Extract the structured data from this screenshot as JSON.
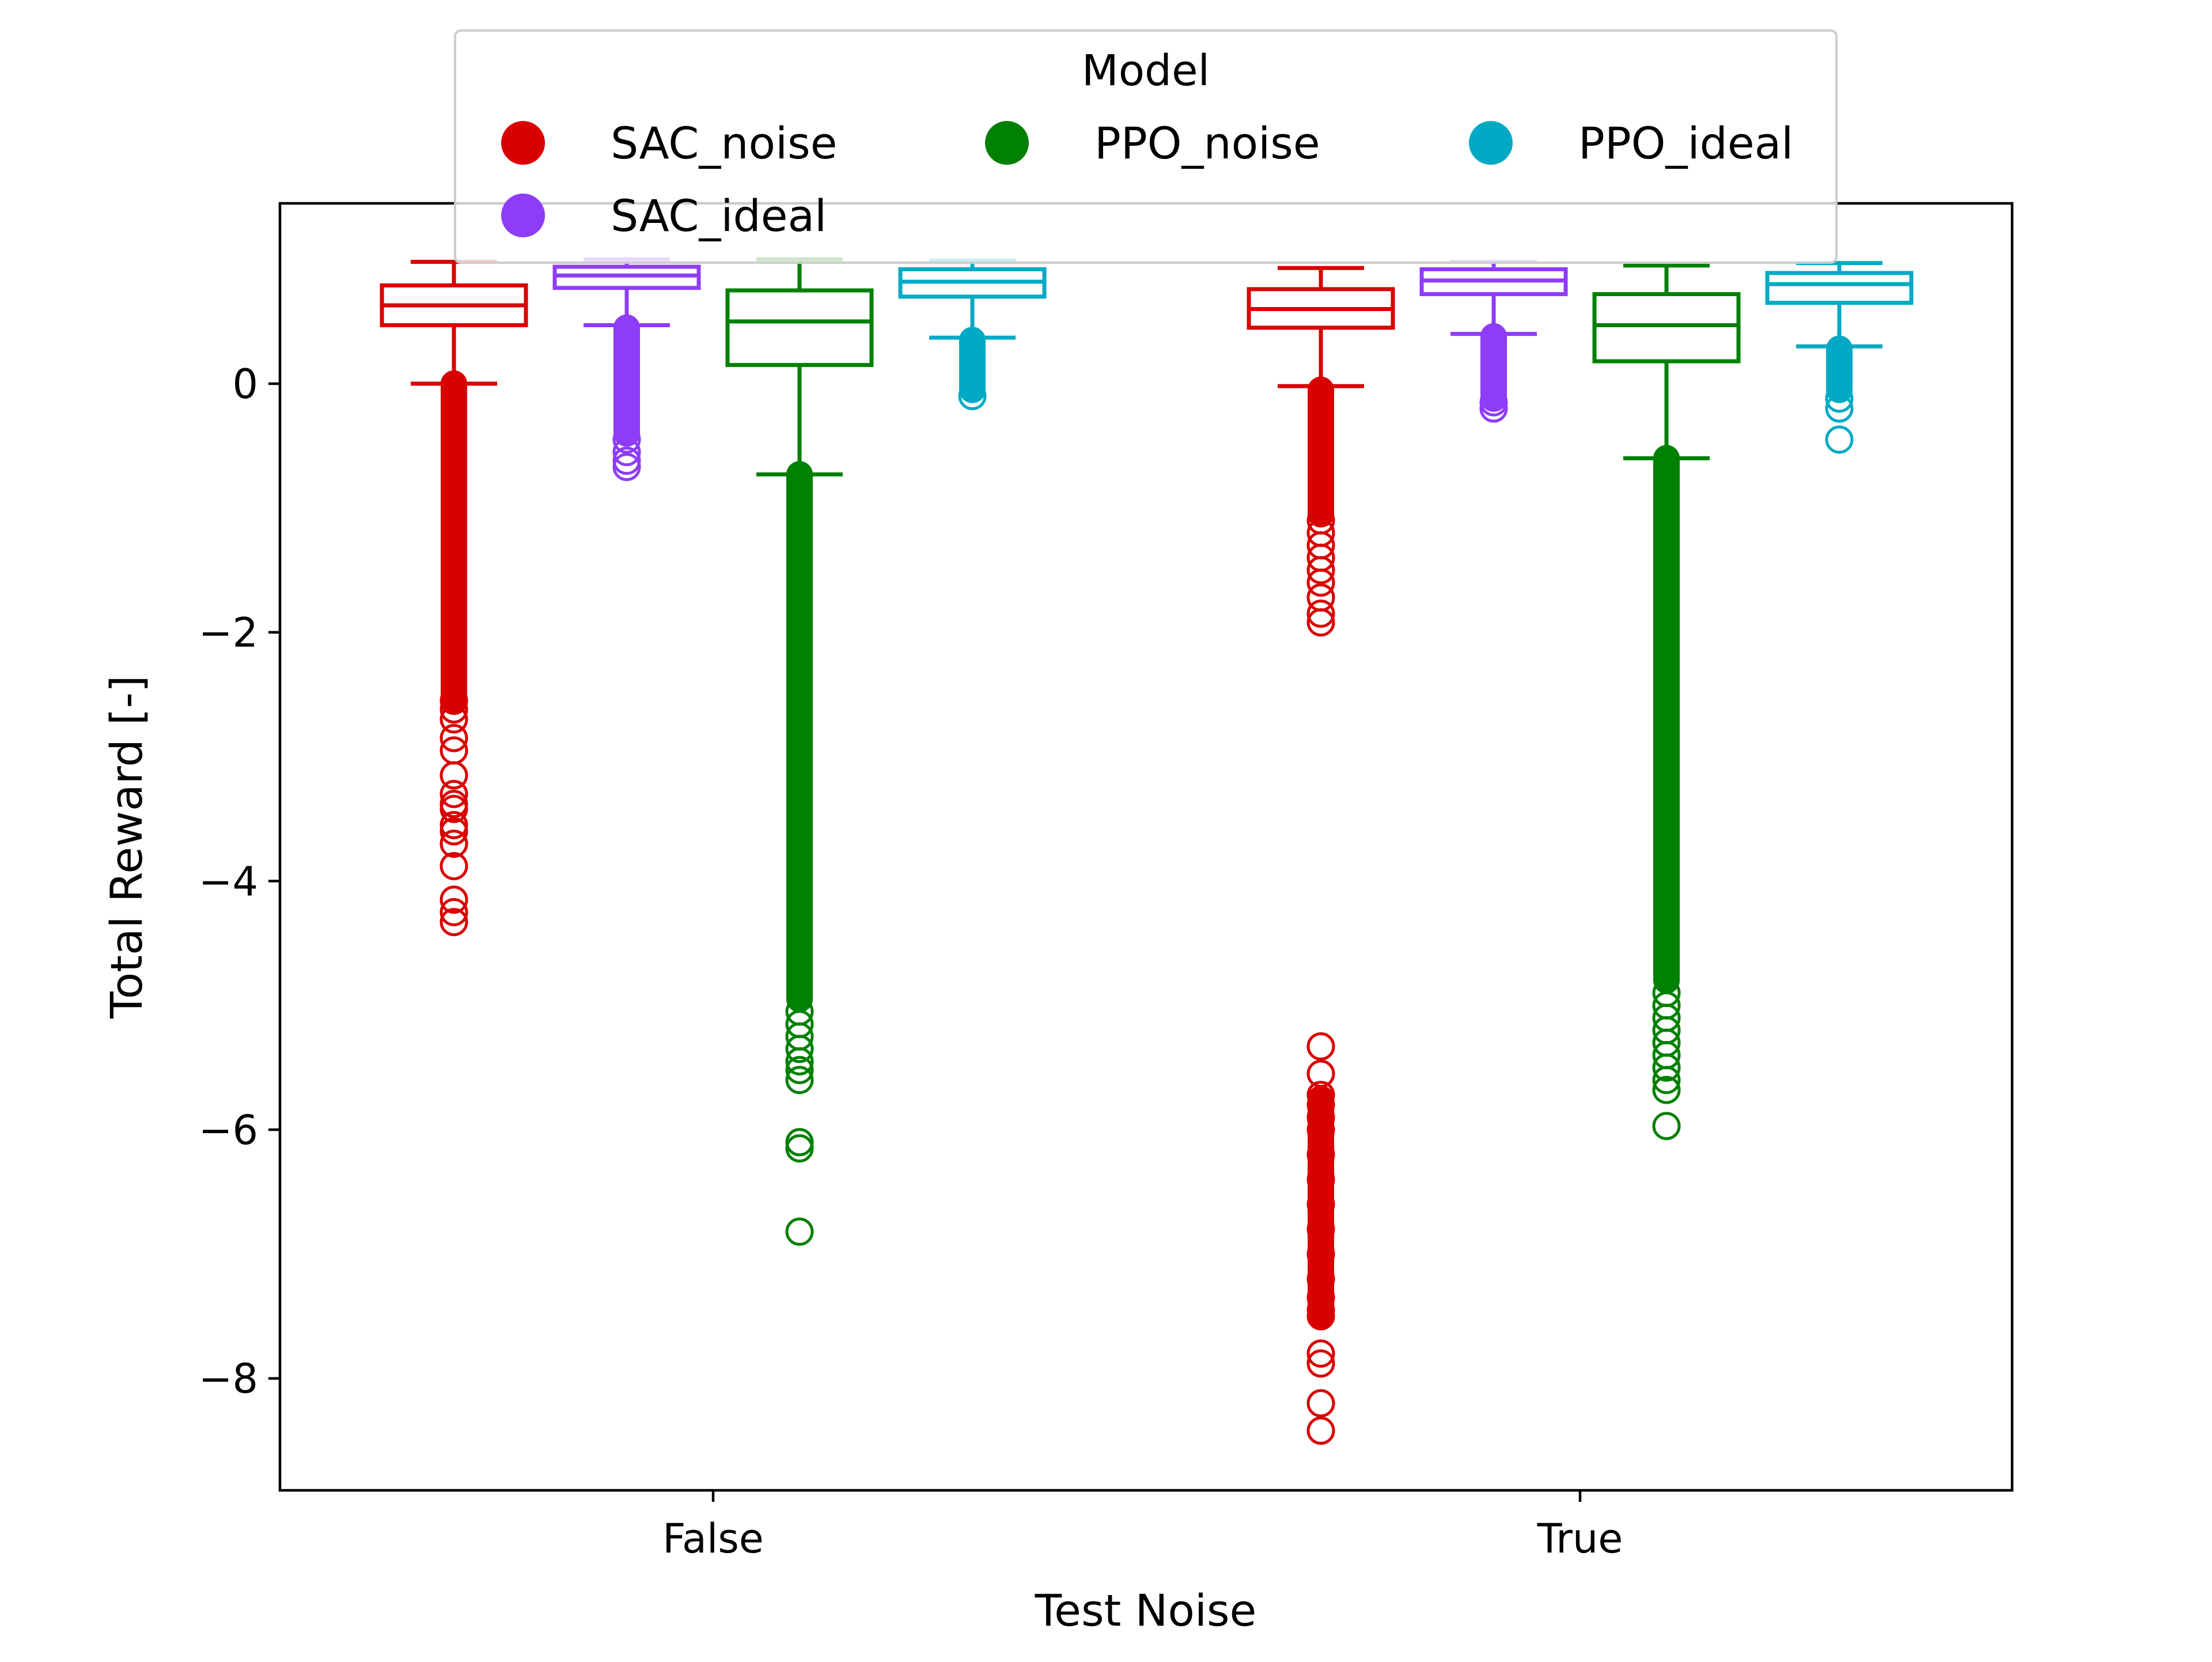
{
  "chart_data": {
    "type": "box",
    "xlabel": "Test Noise",
    "ylabel": "Total Reward [-]",
    "ylim": [
      -8.9,
      1.45
    ],
    "yticks": [
      0,
      -2,
      -4,
      -6,
      -8
    ],
    "ytick_labels": [
      "0",
      "−2",
      "−4",
      "−6",
      "−8"
    ],
    "categories": [
      "False",
      "True"
    ],
    "grid": false,
    "legend": {
      "title": "Model",
      "placement": "top-center",
      "entries": [
        "SAC_noise",
        "PPO_noise",
        "PPO_ideal",
        "SAC_ideal"
      ]
    },
    "series": [
      {
        "name": "SAC_noise",
        "color": "#d90000",
        "boxes": [
          {
            "category": "False",
            "whislo": 0.0,
            "q1": 0.47,
            "med": 0.63,
            "q3": 0.79,
            "whishi": 0.98,
            "fliers_dense": [
              -2.55,
              0.0
            ],
            "fliers": [
              -2.55,
              -2.62,
              -2.7,
              -2.85,
              -2.95,
              -3.15,
              -3.3,
              -3.38,
              -3.42,
              -3.55,
              -3.6,
              -3.7,
              -3.88,
              -4.15,
              -4.25,
              -4.33
            ]
          },
          {
            "category": "True",
            "whislo": -0.02,
            "q1": 0.45,
            "med": 0.6,
            "q3": 0.76,
            "whishi": 0.93,
            "fliers_dense": [
              -1.05,
              -0.05
            ],
            "fliers": [
              -1.1,
              -1.2,
              -1.3,
              -1.4,
              -1.5,
              -1.6,
              -1.72,
              -1.85,
              -1.92,
              -5.33,
              -5.55,
              -5.72,
              -5.8,
              -5.9,
              -6.0,
              -6.2,
              -6.4,
              -6.6,
              -6.8,
              -7.0,
              -7.2,
              -7.35,
              -7.45,
              -7.5,
              -7.8,
              -7.88,
              -8.2,
              -8.42
            ],
            "fliers_dense_2": [
              -7.5,
              -5.75
            ]
          }
        ]
      },
      {
        "name": "SAC_ideal",
        "color": "#8e3cf7",
        "boxes": [
          {
            "category": "False",
            "whislo": 0.47,
            "q1": 0.77,
            "med": 0.87,
            "q3": 0.94,
            "whishi": 1.0,
            "fliers_dense": [
              -0.4,
              0.45
            ],
            "fliers": [
              -0.45,
              -0.55,
              -0.62,
              -0.67
            ]
          },
          {
            "category": "True",
            "whislo": 0.4,
            "q1": 0.72,
            "med": 0.83,
            "q3": 0.92,
            "whishi": 0.98,
            "fliers_dense": [
              -0.12,
              0.38
            ],
            "fliers": [
              -0.15,
              -0.2
            ]
          }
        ]
      },
      {
        "name": "PPO_noise",
        "color": "#008000",
        "boxes": [
          {
            "category": "False",
            "whislo": -0.73,
            "q1": 0.15,
            "med": 0.5,
            "q3": 0.75,
            "whishi": 1.0,
            "fliers_dense": [
              -4.95,
              -0.73
            ],
            "fliers": [
              -5.05,
              -5.15,
              -5.25,
              -5.35,
              -5.45,
              -5.52,
              -5.6,
              -6.1,
              -6.15,
              -6.82
            ]
          },
          {
            "category": "True",
            "whislo": -0.6,
            "q1": 0.18,
            "med": 0.47,
            "q3": 0.72,
            "whishi": 0.95,
            "fliers_dense": [
              -4.8,
              -0.6
            ],
            "fliers": [
              -4.9,
              -5.0,
              -5.1,
              -5.2,
              -5.3,
              -5.4,
              -5.5,
              -5.6,
              -5.68,
              -5.97
            ]
          }
        ]
      },
      {
        "name": "PPO_ideal",
        "color": "#00aac4",
        "boxes": [
          {
            "category": "False",
            "whislo": 0.37,
            "q1": 0.7,
            "med": 0.82,
            "q3": 0.92,
            "whishi": 0.99,
            "fliers_dense": [
              -0.05,
              0.35
            ],
            "fliers": [
              -0.1
            ]
          },
          {
            "category": "True",
            "whislo": 0.3,
            "q1": 0.65,
            "med": 0.8,
            "q3": 0.89,
            "whishi": 0.97,
            "fliers_dense": [
              -0.05,
              0.28
            ],
            "fliers": [
              -0.12,
              -0.2,
              -0.45
            ]
          }
        ]
      }
    ]
  }
}
